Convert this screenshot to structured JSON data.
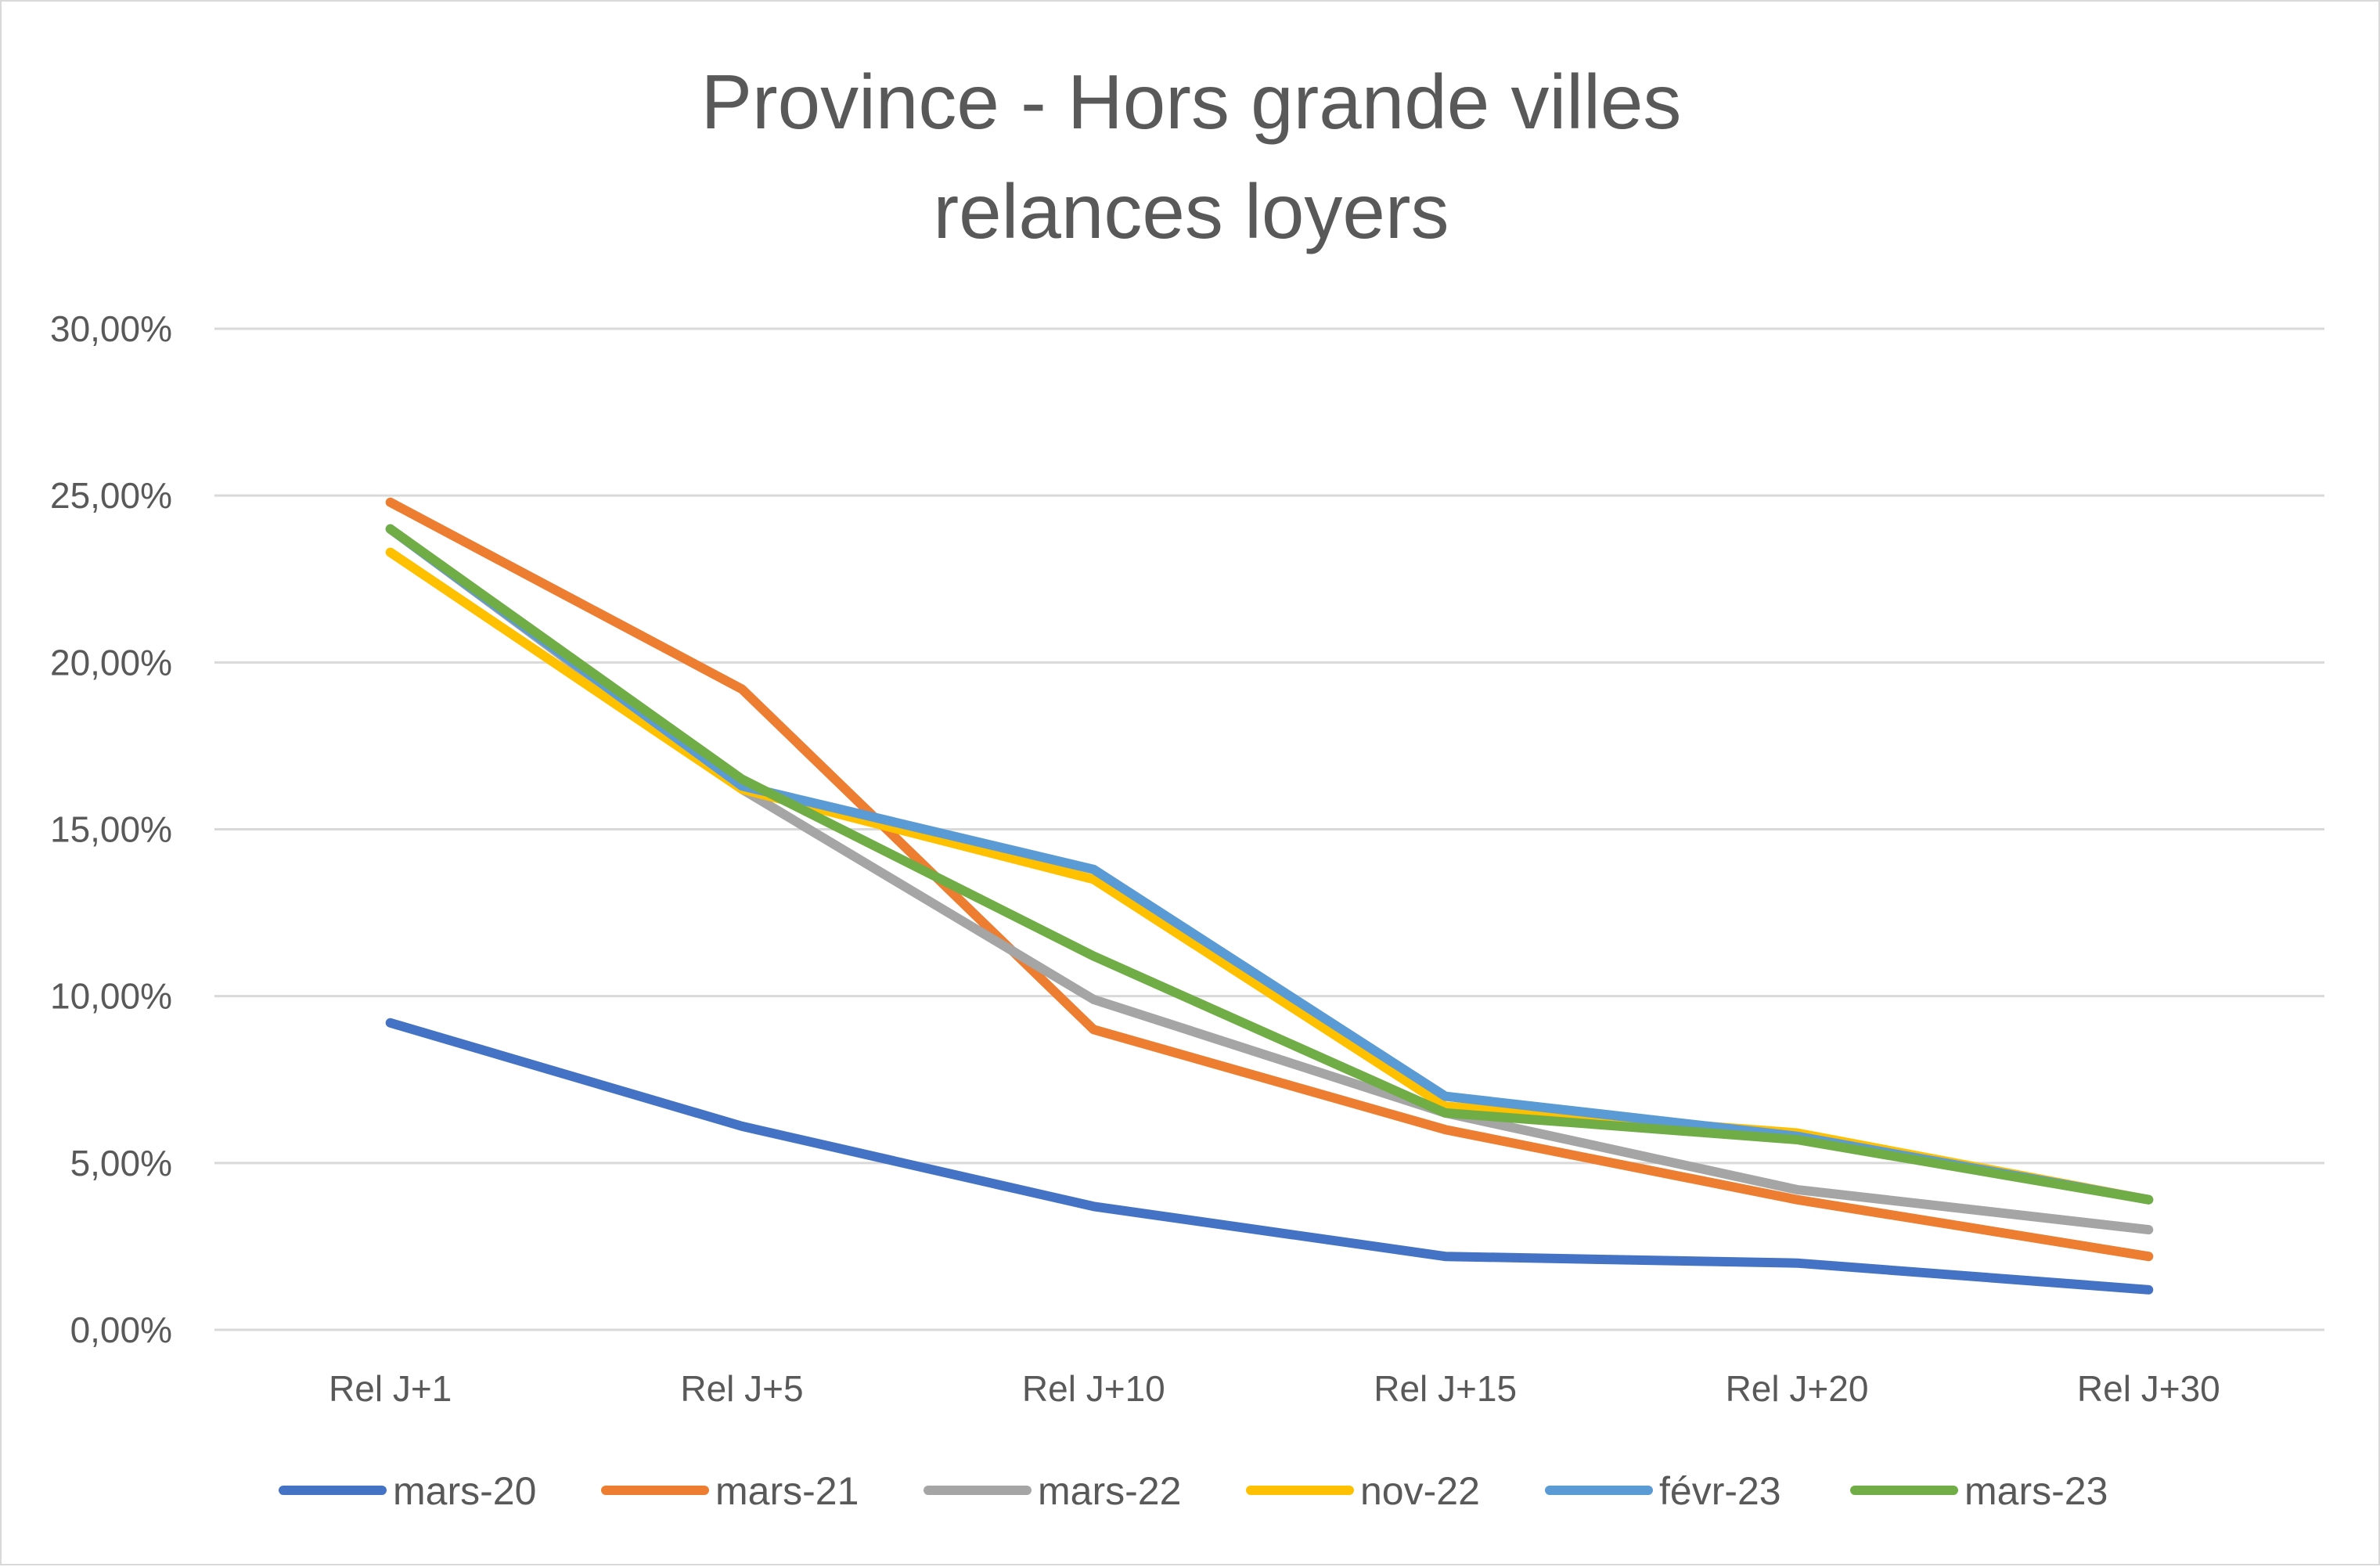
{
  "chart_data": {
    "type": "line",
    "title": [
      "Province - Hors grande villes",
      "relances loyers"
    ],
    "xlabel": "",
    "ylabel": "",
    "categories": [
      "Rel J+1",
      "Rel J+5",
      "Rel J+10",
      "Rel J+15",
      "Rel J+20",
      "Rel J+30"
    ],
    "ylim": [
      0,
      30
    ],
    "yticks": [
      0,
      5,
      10,
      15,
      20,
      25,
      30
    ],
    "ytick_labels": [
      "0,00%",
      "5,00%",
      "10,00%",
      "15,00%",
      "20,00%",
      "25,00%",
      "30,00%"
    ],
    "grid": true,
    "legend_position": "bottom",
    "series": [
      {
        "name": "mars-20",
        "color": "#4472C4",
        "values": [
          9.2,
          6.1,
          3.7,
          2.2,
          2.0,
          1.2
        ]
      },
      {
        "name": "mars-21",
        "color": "#ED7D31",
        "values": [
          24.8,
          19.2,
          9.0,
          6.0,
          3.9,
          2.2
        ]
      },
      {
        "name": "mars-22",
        "color": "#A5A5A5",
        "values": [
          24.0,
          16.2,
          9.9,
          6.5,
          4.2,
          3.0
        ]
      },
      {
        "name": "nov-22",
        "color": "#FFC000",
        "values": [
          23.3,
          16.2,
          13.5,
          6.7,
          5.9,
          3.9
        ]
      },
      {
        "name": "févr-23",
        "color": "#5B9BD5",
        "values": [
          24.0,
          16.3,
          13.8,
          7.0,
          5.8,
          3.9
        ]
      },
      {
        "name": "mars-23",
        "color": "#70AD47",
        "values": [
          24.0,
          16.5,
          11.2,
          6.5,
          5.7,
          3.9
        ]
      }
    ]
  }
}
